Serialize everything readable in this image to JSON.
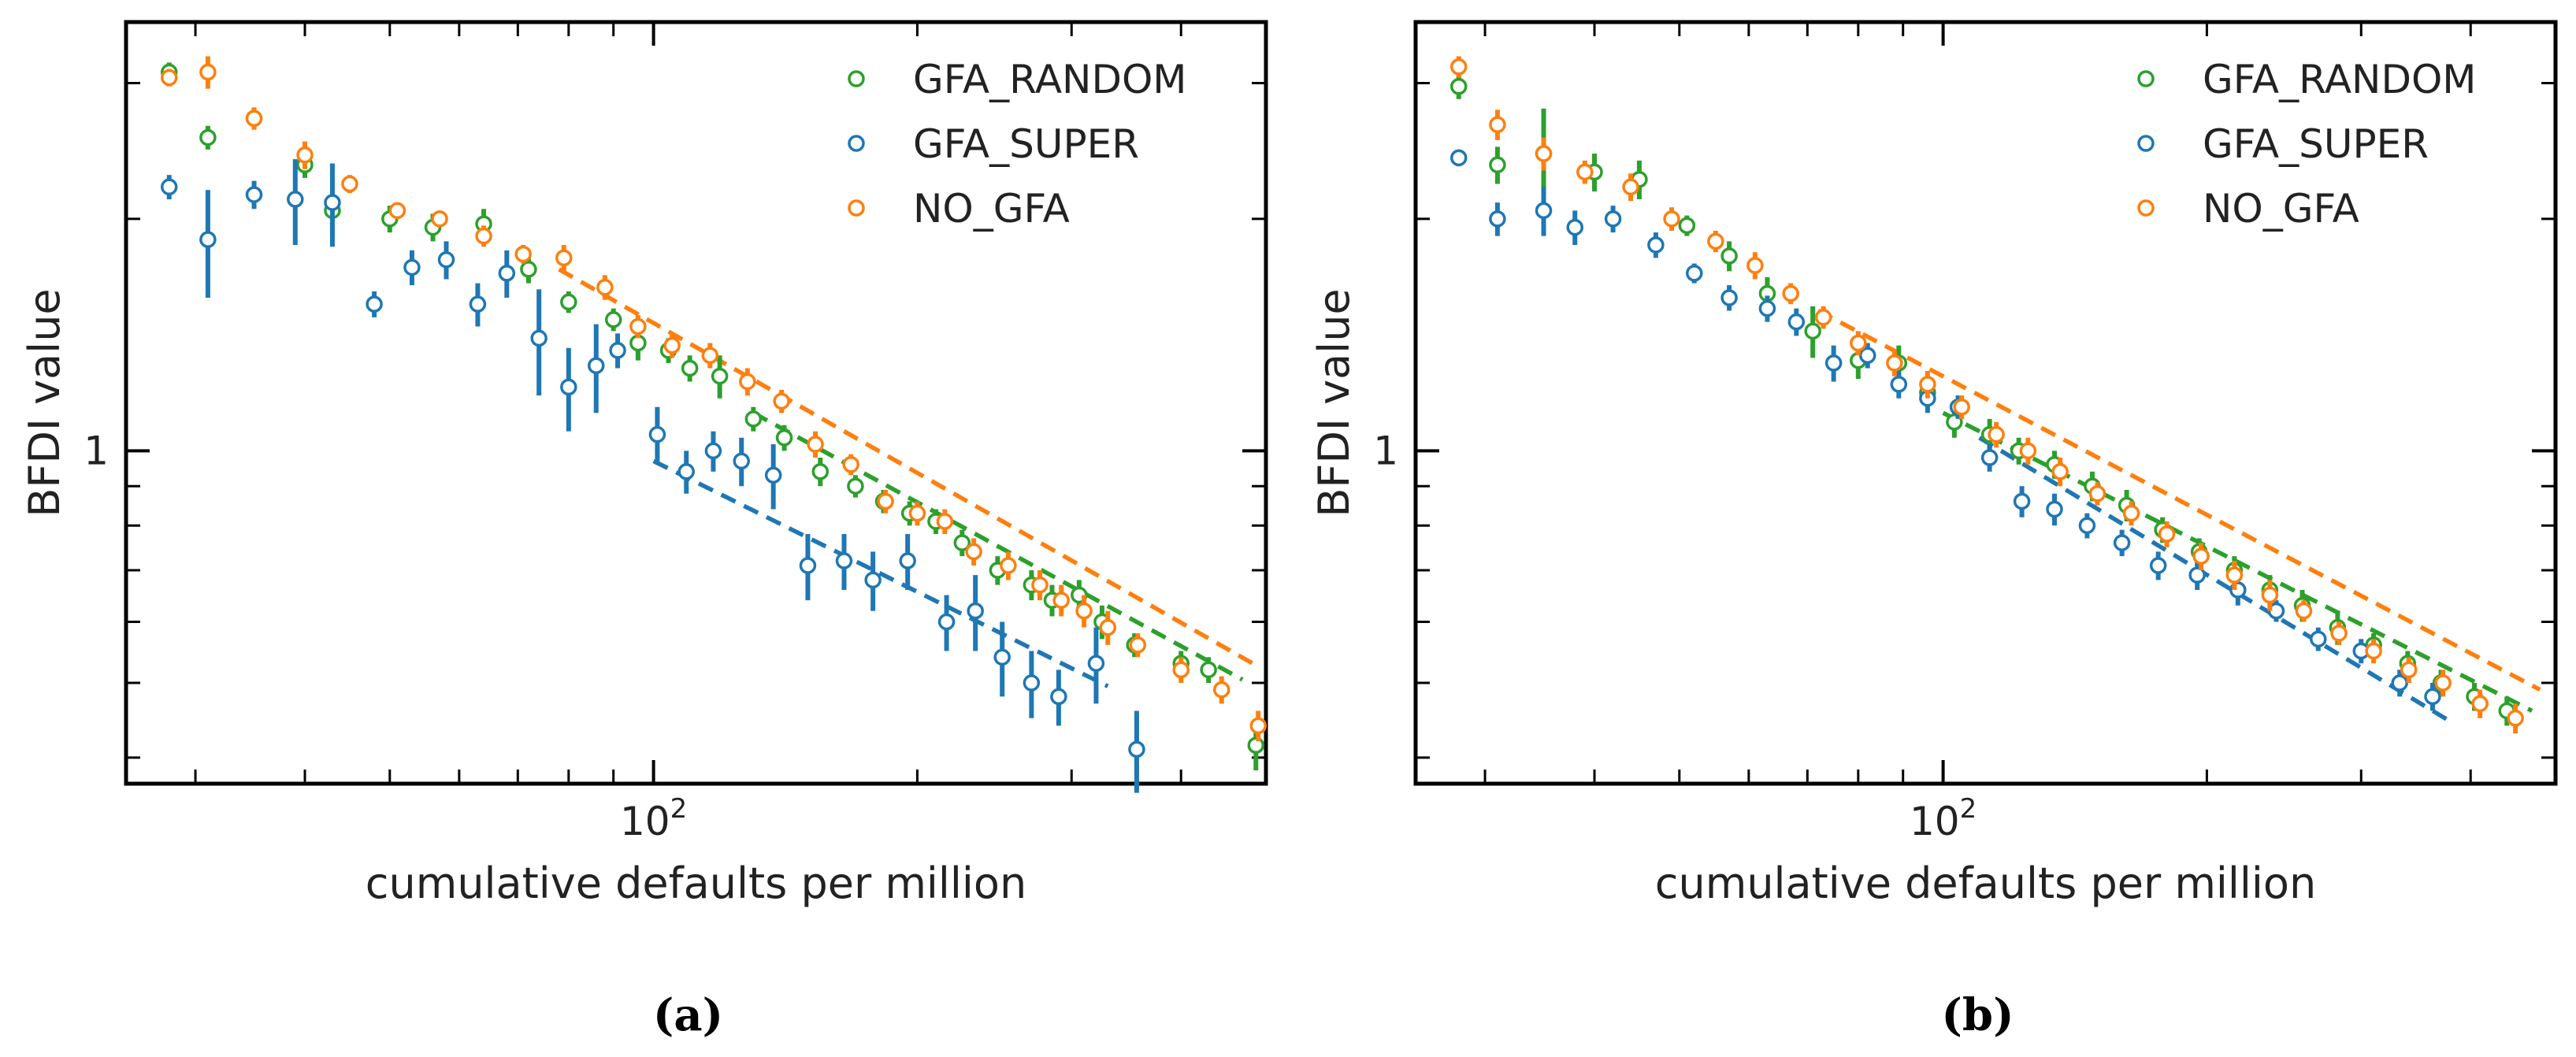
{
  "figure": {
    "panels": [
      {
        "id": "a",
        "caption": "(a)"
      },
      {
        "id": "b",
        "caption": "(b)"
      }
    ]
  },
  "colors": {
    "GFA_RANDOM": "#2ca02c",
    "GFA_SUPER": "#1f77b4",
    "NO_GFA": "#ff7f0e"
  },
  "chart_data": [
    {
      "type": "scatter",
      "panel": "a",
      "xlabel": "cumulative defaults per million",
      "ylabel": "BFDI value",
      "xscale": "log",
      "yscale": "log",
      "xlim": [
        25,
        500
      ],
      "ylim": [
        0.37,
        3.6
      ],
      "xtick_label": {
        "value": 100,
        "base": "10",
        "exp": "2"
      },
      "ytick_label": {
        "value": 1,
        "text": "1"
      },
      "legend_position": "top-right",
      "series": [
        {
          "name": "GFA_RANDOM",
          "points": [
            [
              28,
              3.1,
              0.09
            ],
            [
              31,
              2.55,
              0.09
            ],
            [
              35,
              2.7,
              0.08
            ],
            [
              40,
              2.35,
              0.09
            ],
            [
              43,
              2.05,
              0.14
            ],
            [
              50,
              2.0,
              0.08
            ],
            [
              56,
              1.95,
              0.08
            ],
            [
              64,
              1.97,
              0.09
            ],
            [
              72,
              1.72,
              0.07
            ],
            [
              80,
              1.56,
              0.05
            ],
            [
              90,
              1.48,
              0.05
            ],
            [
              96,
              1.38,
              0.07
            ],
            [
              104,
              1.35,
              0.05
            ],
            [
              110,
              1.28,
              0.05
            ],
            [
              119,
              1.25,
              0.08
            ],
            [
              130,
              1.1,
              0.04
            ],
            [
              141,
              1.04,
              0.04
            ],
            [
              155,
              0.94,
              0.04
            ],
            [
              170,
              0.9,
              0.03
            ],
            [
              183,
              0.86,
              0.03
            ],
            [
              196,
              0.83,
              0.03
            ],
            [
              210,
              0.81,
              0.03
            ],
            [
              225,
              0.76,
              0.03
            ],
            [
              247,
              0.7,
              0.03
            ],
            [
              270,
              0.67,
              0.03
            ],
            [
              285,
              0.64,
              0.03
            ],
            [
              306,
              0.65,
              0.03
            ],
            [
              325,
              0.6,
              0.03
            ],
            [
              354,
              0.56,
              0.02
            ],
            [
              400,
              0.53,
              0.02
            ],
            [
              430,
              0.52,
              0.02
            ],
            [
              487,
              0.415,
              0.03
            ]
          ]
        },
        {
          "name": "GFA_SUPER",
          "points": [
            [
              28,
              2.2,
              0.08
            ],
            [
              31,
              1.88,
              0.3
            ],
            [
              35,
              2.15,
              0.09
            ],
            [
              39,
              2.12,
              0.27
            ],
            [
              43,
              2.1,
              0.26
            ],
            [
              48,
              1.55,
              0.06
            ],
            [
              53,
              1.73,
              0.09
            ],
            [
              58,
              1.77,
              0.1
            ],
            [
              63,
              1.55,
              0.1
            ],
            [
              68,
              1.7,
              0.12
            ],
            [
              74,
              1.4,
              0.22
            ],
            [
              80,
              1.21,
              0.15
            ],
            [
              86,
              1.29,
              0.17
            ],
            [
              91,
              1.35,
              0.07
            ],
            [
              101,
              1.05,
              0.09
            ],
            [
              109,
              0.94,
              0.06
            ],
            [
              117,
              1.0,
              0.06
            ],
            [
              126,
              0.97,
              0.07
            ],
            [
              137,
              0.93,
              0.09
            ],
            [
              150,
              0.71,
              0.07
            ],
            [
              165,
              0.72,
              0.06
            ],
            [
              178,
              0.68,
              0.06
            ],
            [
              195,
              0.72,
              0.06
            ],
            [
              216,
              0.6,
              0.05
            ],
            [
              233,
              0.62,
              0.07
            ],
            [
              250,
              0.54,
              0.06
            ],
            [
              270,
              0.5,
              0.05
            ],
            [
              290,
              0.48,
              0.04
            ],
            [
              320,
              0.53,
              0.06
            ],
            [
              356,
              0.41,
              0.05
            ]
          ]
        },
        {
          "name": "NO_GFA",
          "points": [
            [
              28,
              3.05,
              0.08
            ],
            [
              31,
              3.1,
              0.15
            ],
            [
              35,
              2.7,
              0.09
            ],
            [
              40,
              2.42,
              0.1
            ],
            [
              45,
              2.22,
              0.06
            ],
            [
              51,
              2.05,
              0.05
            ],
            [
              57,
              2.0,
              0.05
            ],
            [
              64,
              1.9,
              0.06
            ],
            [
              71,
              1.8,
              0.05
            ],
            [
              79,
              1.78,
              0.07
            ],
            [
              88,
              1.63,
              0.06
            ],
            [
              96,
              1.45,
              0.05
            ],
            [
              105,
              1.37,
              0.05
            ],
            [
              116,
              1.33,
              0.05
            ],
            [
              128,
              1.23,
              0.05
            ],
            [
              140,
              1.16,
              0.04
            ],
            [
              153,
              1.02,
              0.04
            ],
            [
              168,
              0.96,
              0.03
            ],
            [
              184,
              0.86,
              0.03
            ],
            [
              200,
              0.83,
              0.03
            ],
            [
              215,
              0.81,
              0.03
            ],
            [
              232,
              0.74,
              0.03
            ],
            [
              254,
              0.71,
              0.03
            ],
            [
              276,
              0.67,
              0.03
            ],
            [
              292,
              0.64,
              0.03
            ],
            [
              310,
              0.62,
              0.03
            ],
            [
              330,
              0.59,
              0.03
            ],
            [
              357,
              0.56,
              0.02
            ],
            [
              400,
              0.52,
              0.02
            ],
            [
              445,
              0.49,
              0.02
            ],
            [
              490,
              0.44,
              0.02
            ]
          ]
        }
      ],
      "fits": [
        {
          "name": "GFA_RANDOM",
          "x": [
            130,
            470
          ],
          "y": [
            1.12,
            0.505
          ]
        },
        {
          "name": "GFA_SUPER",
          "x": [
            100,
            330
          ],
          "y": [
            0.97,
            0.495
          ]
        },
        {
          "name": "NO_GFA",
          "x": [
            78,
            490
          ],
          "y": [
            1.72,
            0.525
          ]
        }
      ]
    },
    {
      "type": "scatter",
      "panel": "b",
      "xlabel": "cumulative defaults per million",
      "ylabel": "BFDI value",
      "xscale": "log",
      "yscale": "log",
      "xlim": [
        25,
        500
      ],
      "ylim": [
        0.37,
        3.6
      ],
      "xtick_label": {
        "value": 100,
        "base": "10",
        "exp": "2"
      },
      "ytick_label": {
        "value": 1,
        "text": "1"
      },
      "legend_position": "top-right",
      "series": [
        {
          "name": "GFA_RANDOM",
          "points": [
            [
              28,
              2.97,
              0.11
            ],
            [
              31,
              2.35,
              0.13
            ],
            [
              35,
              2.43,
              0.35
            ],
            [
              40,
              2.3,
              0.13
            ],
            [
              45,
              2.25,
              0.13
            ],
            [
              51,
              1.96,
              0.06
            ],
            [
              57,
              1.79,
              0.08
            ],
            [
              63,
              1.6,
              0.08
            ],
            [
              71,
              1.43,
              0.11
            ],
            [
              80,
              1.31,
              0.07
            ],
            [
              89,
              1.3,
              0.07
            ],
            [
              96,
              1.19,
              0.05
            ],
            [
              103,
              1.09,
              0.05
            ],
            [
              113,
              1.05,
              0.05
            ],
            [
              122,
              1.0,
              0.04
            ],
            [
              134,
              0.96,
              0.04
            ],
            [
              148,
              0.9,
              0.04
            ],
            [
              162,
              0.85,
              0.04
            ],
            [
              178,
              0.79,
              0.03
            ],
            [
              196,
              0.74,
              0.03
            ],
            [
              215,
              0.7,
              0.03
            ],
            [
              236,
              0.66,
              0.03
            ],
            [
              257,
              0.63,
              0.03
            ],
            [
              282,
              0.59,
              0.03
            ],
            [
              310,
              0.56,
              0.02
            ],
            [
              339,
              0.53,
              0.02
            ],
            [
              370,
              0.5,
              0.02
            ],
            [
              404,
              0.48,
              0.02
            ],
            [
              440,
              0.46,
              0.02
            ]
          ]
        },
        {
          "name": "GFA_SUPER",
          "points": [
            [
              28,
              2.4,
              0.06
            ],
            [
              31,
              2.0,
              0.1
            ],
            [
              35,
              2.05,
              0.15
            ],
            [
              38,
              1.95,
              0.1
            ],
            [
              42,
              2.0,
              0.08
            ],
            [
              47,
              1.85,
              0.07
            ],
            [
              52,
              1.7,
              0.05
            ],
            [
              57,
              1.58,
              0.06
            ],
            [
              63,
              1.53,
              0.06
            ],
            [
              68,
              1.47,
              0.06
            ],
            [
              75,
              1.3,
              0.07
            ],
            [
              82,
              1.33,
              0.05
            ],
            [
              89,
              1.22,
              0.05
            ],
            [
              96,
              1.17,
              0.05
            ],
            [
              104,
              1.14,
              0.04
            ],
            [
              113,
              0.98,
              0.04
            ],
            [
              123,
              0.86,
              0.04
            ],
            [
              134,
              0.84,
              0.04
            ],
            [
              146,
              0.8,
              0.03
            ],
            [
              160,
              0.76,
              0.03
            ],
            [
              176,
              0.71,
              0.03
            ],
            [
              195,
              0.69,
              0.03
            ],
            [
              217,
              0.66,
              0.03
            ],
            [
              240,
              0.62,
              0.02
            ],
            [
              268,
              0.57,
              0.02
            ],
            [
              300,
              0.55,
              0.02
            ],
            [
              332,
              0.5,
              0.02
            ],
            [
              362,
              0.48,
              0.02
            ]
          ]
        },
        {
          "name": "NO_GFA",
          "points": [
            [
              28,
              3.15,
              0.1
            ],
            [
              31,
              2.65,
              0.12
            ],
            [
              35,
              2.43,
              0.12
            ],
            [
              39,
              2.3,
              0.08
            ],
            [
              44,
              2.2,
              0.09
            ],
            [
              49,
              2.0,
              0.07
            ],
            [
              55,
              1.87,
              0.06
            ],
            [
              61,
              1.74,
              0.07
            ],
            [
              67,
              1.6,
              0.05
            ],
            [
              73,
              1.49,
              0.05
            ],
            [
              80,
              1.38,
              0.05
            ],
            [
              88,
              1.3,
              0.05
            ],
            [
              96,
              1.22,
              0.05
            ],
            [
              105,
              1.14,
              0.04
            ],
            [
              115,
              1.05,
              0.04
            ],
            [
              125,
              1.0,
              0.04
            ],
            [
              136,
              0.94,
              0.04
            ],
            [
              150,
              0.88,
              0.03
            ],
            [
              164,
              0.83,
              0.03
            ],
            [
              180,
              0.78,
              0.03
            ],
            [
              197,
              0.73,
              0.03
            ],
            [
              215,
              0.69,
              0.03
            ],
            [
              236,
              0.65,
              0.03
            ],
            [
              258,
              0.62,
              0.02
            ],
            [
              283,
              0.58,
              0.02
            ],
            [
              310,
              0.55,
              0.02
            ],
            [
              340,
              0.52,
              0.02
            ],
            [
              372,
              0.5,
              0.02
            ],
            [
              410,
              0.47,
              0.02
            ],
            [
              450,
              0.45,
              0.02
            ]
          ]
        }
      ],
      "fits": [
        {
          "name": "GFA_RANDOM",
          "x": [
            100,
            470
          ],
          "y": [
            1.12,
            0.46
          ]
        },
        {
          "name": "GFA_SUPER",
          "x": [
            110,
            380
          ],
          "y": [
            1.04,
            0.445
          ]
        },
        {
          "name": "NO_GFA",
          "x": [
            72,
            480
          ],
          "y": [
            1.52,
            0.49
          ]
        }
      ]
    }
  ]
}
